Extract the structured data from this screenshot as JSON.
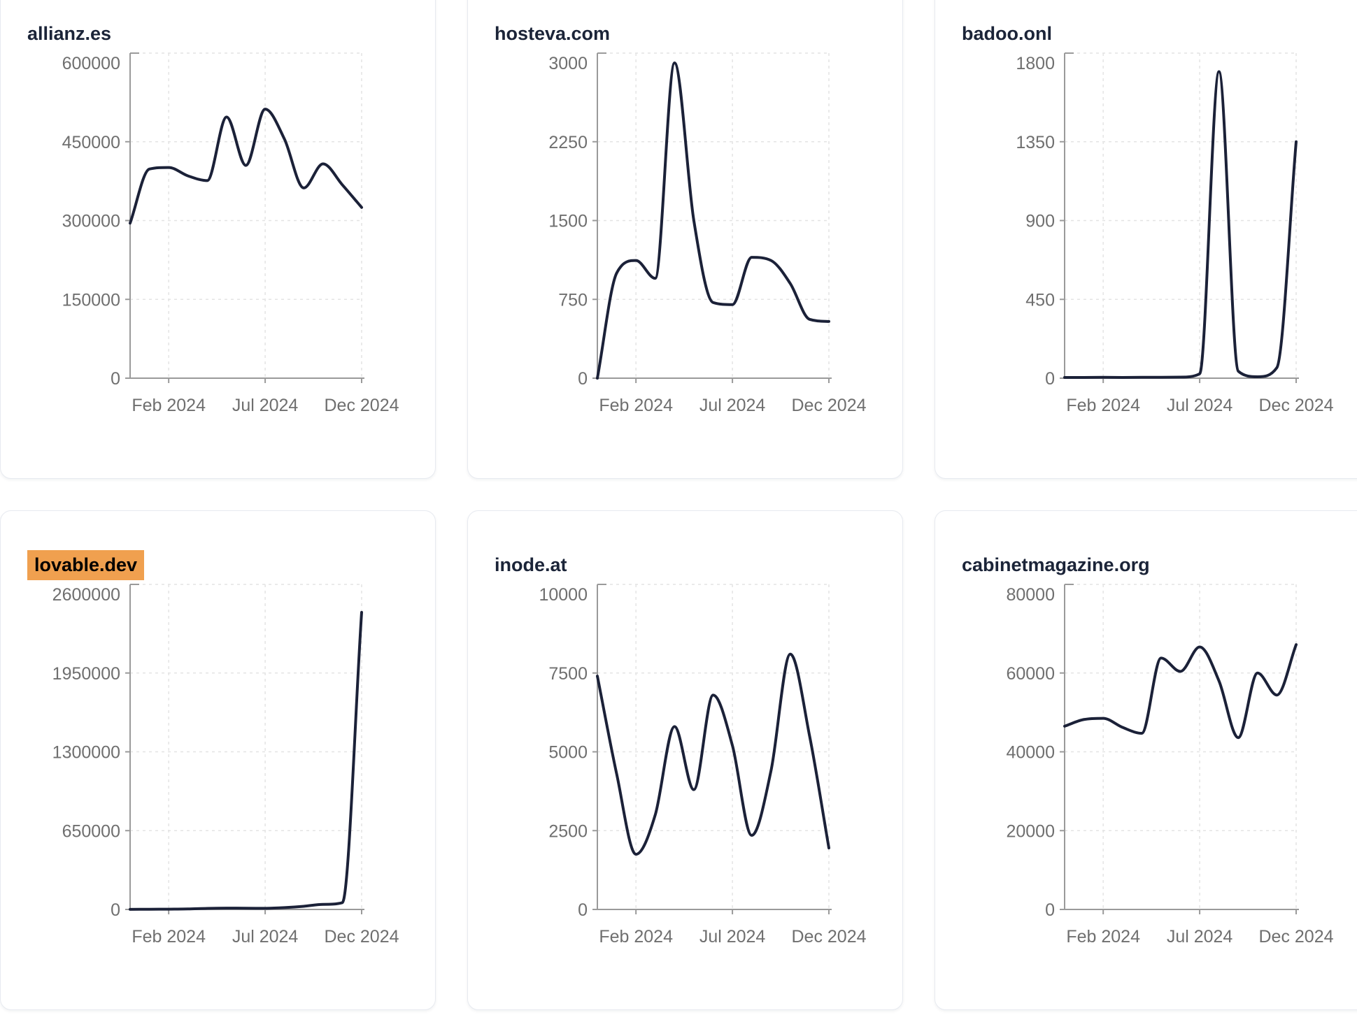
{
  "chart_data": {
    "type": "line",
    "x_tick_labels": [
      "Feb 2024",
      "Jul 2024",
      "Dec 2024"
    ],
    "x_tick_indices": [
      2,
      7,
      12
    ],
    "grid": "dashed",
    "legend": "none",
    "charts": [
      {
        "title": "allianz.es",
        "highlighted": false,
        "y_ticks": [
          0,
          150000,
          300000,
          450000,
          600000
        ],
        "ylim": [
          0,
          600000
        ],
        "values": [
          295000,
          398000,
          401000,
          385000,
          376000,
          497000,
          405000,
          512000,
          455000,
          362000,
          408000,
          368000,
          325000
        ]
      },
      {
        "title": "hosteva.com",
        "highlighted": false,
        "y_ticks": [
          0,
          750,
          1500,
          2250,
          3000
        ],
        "ylim": [
          0,
          3000
        ],
        "values": [
          0,
          1000,
          1120,
          950,
          3000,
          1500,
          720,
          700,
          1150,
          1120,
          900,
          560,
          540
        ]
      },
      {
        "title": "badoo.onl",
        "highlighted": false,
        "y_ticks": [
          0,
          450,
          900,
          1350,
          1800
        ],
        "ylim": [
          0,
          1800
        ],
        "values": [
          4,
          4,
          5,
          4,
          5,
          5,
          6,
          25,
          1750,
          40,
          8,
          60,
          1350
        ]
      },
      {
        "title": "lovable.dev",
        "highlighted": true,
        "y_ticks": [
          0,
          650000,
          1300000,
          1950000,
          2600000
        ],
        "ylim": [
          0,
          2600000
        ],
        "values": [
          1000,
          1500,
          2500,
          4000,
          9000,
          11000,
          10000,
          9500,
          15000,
          26000,
          42000,
          56000,
          2450000
        ]
      },
      {
        "title": "inode.at",
        "highlighted": false,
        "y_ticks": [
          0,
          2500,
          5000,
          7500,
          10000
        ],
        "ylim": [
          0,
          10000
        ],
        "values": [
          7400,
          4300,
          1750,
          3000,
          5800,
          3800,
          6800,
          5200,
          2350,
          4400,
          8100,
          5500,
          1950
        ]
      },
      {
        "title": "cabinetmagazine.org",
        "highlighted": false,
        "y_ticks": [
          0,
          20000,
          40000,
          60000,
          80000
        ],
        "ylim": [
          0,
          80000
        ],
        "values": [
          46500,
          48200,
          48500,
          46200,
          44700,
          63800,
          60400,
          66600,
          58000,
          43600,
          60000,
          54400,
          67200
        ]
      }
    ]
  },
  "style": {
    "line_color": "#1b2138",
    "axis_color": "#9a9a9a",
    "grid_color": "#e4e4e4",
    "tick_label_color": "#6f6f6f",
    "title_color": "#1b2438",
    "highlight_bg": "#f0a04f",
    "highlight_text": "#000000",
    "card_bg": "#ffffff",
    "card_border": "#e7eaf0",
    "page_bg": "#ffffff"
  }
}
